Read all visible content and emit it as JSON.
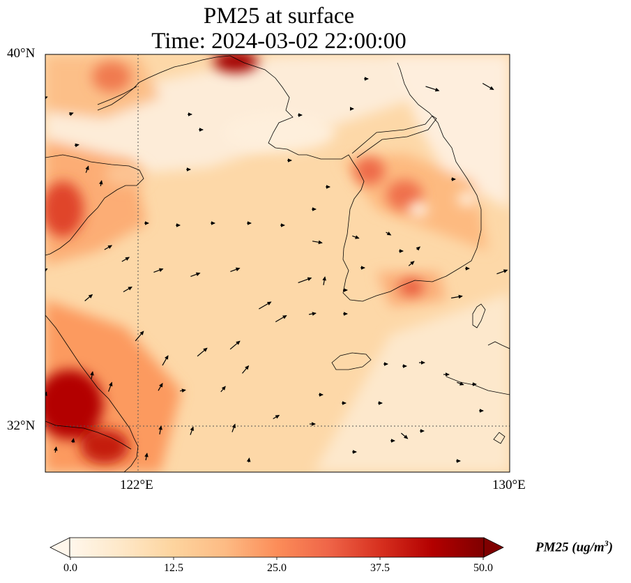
{
  "title": {
    "line1": "PM25 at surface",
    "line2": "Time: 2024-03-02 22:00:00"
  },
  "map": {
    "lat_labels": [
      "40°N",
      "32°N"
    ],
    "lon_labels": [
      "122°E",
      "130°E"
    ],
    "lon_range": [
      120,
      130
    ],
    "lat_range": [
      31,
      40
    ]
  },
  "colorbar": {
    "label_prefix": "PM25 (ug/m",
    "label_sup": "3",
    "label_suffix": ")",
    "ticks": [
      "0.0",
      "12.5",
      "25.0",
      "37.5",
      "50.0"
    ],
    "range": [
      0,
      50
    ],
    "colormap": "OrRd",
    "extend": "both"
  },
  "chart_data": {
    "type": "heatmap",
    "variable": "PM25",
    "units": "ug/m3",
    "title": "PM25 at surface",
    "subtitle": "Time: 2024-03-02 22:00:00",
    "xlabel": "",
    "ylabel": "",
    "lon_ticks": [
      122,
      130
    ],
    "lat_ticks": [
      32,
      40
    ],
    "hotspots": [
      {
        "lon": 120.6,
        "lat": 32.3,
        "value": 50
      },
      {
        "lon": 121.1,
        "lat": 31.6,
        "value": 48
      },
      {
        "lon": 120.4,
        "lat": 35.8,
        "value": 38
      },
      {
        "lon": 121.5,
        "lat": 39.7,
        "value": 30
      },
      {
        "lon": 124.2,
        "lat": 39.9,
        "value": 50
      },
      {
        "lon": 126.8,
        "lat": 37.3,
        "value": 33
      },
      {
        "lon": 127.6,
        "lat": 36.9,
        "value": 30
      },
      {
        "lon": 127.9,
        "lat": 35.0,
        "value": 32
      },
      {
        "lon": 121.0,
        "lat": 37.7,
        "value": 28
      }
    ],
    "background_value": 13
  }
}
